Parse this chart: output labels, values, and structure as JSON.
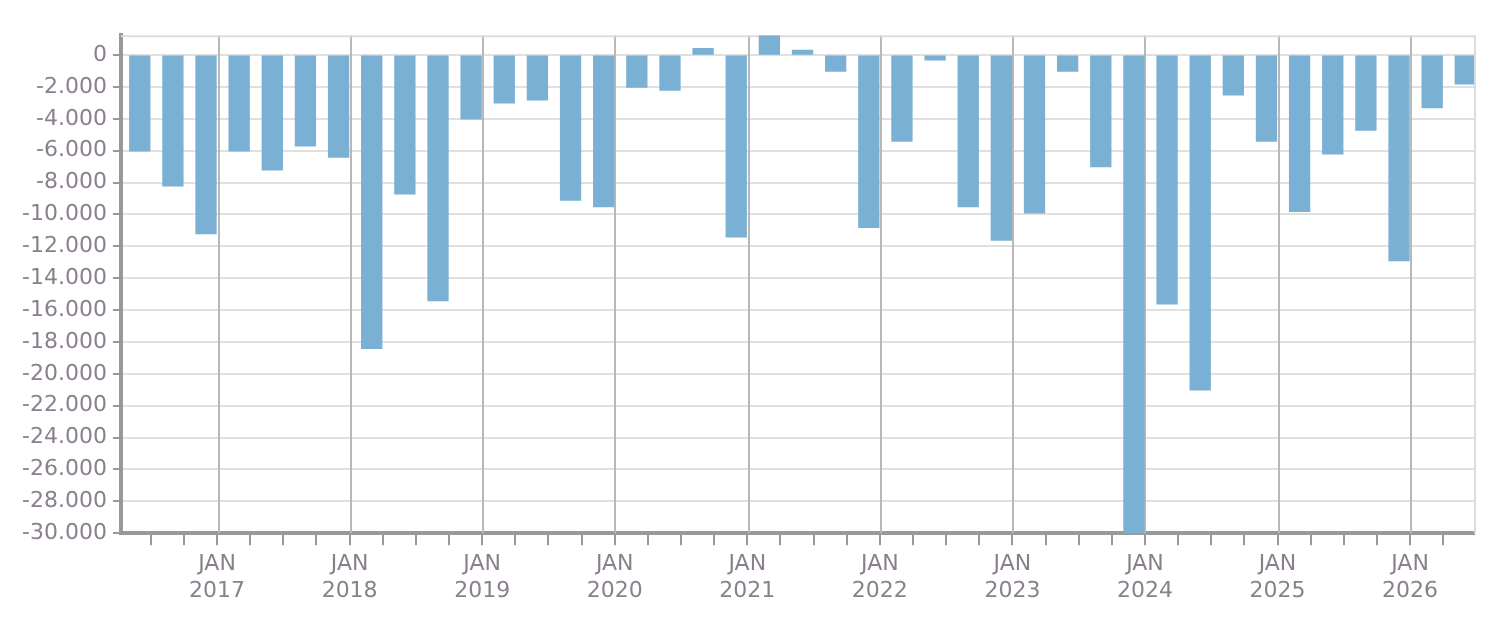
{
  "chart_data": {
    "type": "bar",
    "color": "#7ab0d3",
    "x": [
      "2016-06",
      "2016-09",
      "2016-12",
      "2017-03",
      "2017-06",
      "2017-09",
      "2017-12",
      "2018-03",
      "2018-06",
      "2018-09",
      "2018-12",
      "2019-03",
      "2019-06",
      "2019-09",
      "2019-12",
      "2020-03",
      "2020-06",
      "2020-09",
      "2020-12",
      "2021-03",
      "2021-06",
      "2021-09",
      "2021-12",
      "2022-03",
      "2022-06",
      "2022-09",
      "2022-12",
      "2023-03",
      "2023-06",
      "2023-09",
      "2023-12",
      "2024-03",
      "2024-06",
      "2024-09",
      "2024-12",
      "2025-03",
      "2025-06",
      "2025-09",
      "2025-12",
      "2026-03",
      "2026-06"
    ],
    "values": [
      -6000,
      -8200,
      -11200,
      -6000,
      -7200,
      -5700,
      -6400,
      -18400,
      -8700,
      -15400,
      -4000,
      -3000,
      -2800,
      -9100,
      -9500,
      -2000,
      -2200,
      400,
      -11400,
      1200,
      300,
      -1000,
      -10800,
      -5400,
      -300,
      -9500,
      -11600,
      -9900,
      -1000,
      -7000,
      -30000,
      -15600,
      -21000,
      -2500,
      -5400,
      -9800,
      -6200,
      -4700,
      -12900,
      -3300,
      -1800
    ],
    "xlim": [
      "2016-04-10",
      "2026-06-25"
    ],
    "xticks": [
      {
        "value": "2016-07",
        "label": null
      },
      {
        "value": "2016-10",
        "label": null
      },
      {
        "value": "2017-01",
        "label": "JAN 2017"
      },
      {
        "value": "2017-04",
        "label": null
      },
      {
        "value": "2017-07",
        "label": null
      },
      {
        "value": "2017-10",
        "label": null
      },
      {
        "value": "2018-01",
        "label": "JAN 2018"
      },
      {
        "value": "2018-04",
        "label": null
      },
      {
        "value": "2018-07",
        "label": null
      },
      {
        "value": "2018-10",
        "label": null
      },
      {
        "value": "2019-01",
        "label": "JAN 2019"
      },
      {
        "value": "2019-04",
        "label": null
      },
      {
        "value": "2019-07",
        "label": null
      },
      {
        "value": "2019-10",
        "label": null
      },
      {
        "value": "2020-01",
        "label": "JAN 2020"
      },
      {
        "value": "2020-04",
        "label": null
      },
      {
        "value": "2020-07",
        "label": null
      },
      {
        "value": "2020-10",
        "label": null
      },
      {
        "value": "2021-01",
        "label": "JAN 2021"
      },
      {
        "value": "2021-04",
        "label": null
      },
      {
        "value": "2021-07",
        "label": null
      },
      {
        "value": "2021-10",
        "label": null
      },
      {
        "value": "2022-01",
        "label": "JAN 2022"
      },
      {
        "value": "2022-04",
        "label": null
      },
      {
        "value": "2022-07",
        "label": null
      },
      {
        "value": "2022-10",
        "label": null
      },
      {
        "value": "2023-01",
        "label": "JAN 2023"
      },
      {
        "value": "2023-04",
        "label": null
      },
      {
        "value": "2023-07",
        "label": null
      },
      {
        "value": "2023-10",
        "label": null
      },
      {
        "value": "2024-01",
        "label": "JAN 2024"
      },
      {
        "value": "2024-04",
        "label": null
      },
      {
        "value": "2024-07",
        "label": null
      },
      {
        "value": "2024-10",
        "label": null
      },
      {
        "value": "2025-01",
        "label": "JAN 2025"
      },
      {
        "value": "2025-04",
        "label": null
      },
      {
        "value": "2025-07",
        "label": null
      },
      {
        "value": "2025-10",
        "label": null
      },
      {
        "value": "2026-01",
        "label": "JAN 2026"
      },
      {
        "value": "2026-04",
        "label": null
      }
    ],
    "ylim": [
      -30000,
      1250
    ],
    "yticks": [
      {
        "value": -30000,
        "label": "-30.000"
      },
      {
        "value": -28000,
        "label": "-28.000"
      },
      {
        "value": -26000,
        "label": "-26.000"
      },
      {
        "value": -24000,
        "label": "-24.000"
      },
      {
        "value": -22000,
        "label": "-22.000"
      },
      {
        "value": -20000,
        "label": "-20.000"
      },
      {
        "value": -18000,
        "label": "-18.000"
      },
      {
        "value": -16000,
        "label": "-16.000"
      },
      {
        "value": -14000,
        "label": "-14.000"
      },
      {
        "value": -12000,
        "label": "-12.000"
      },
      {
        "value": -10000,
        "label": "-10.000"
      },
      {
        "value": -8000,
        "label": "-8.000"
      },
      {
        "value": -6000,
        "label": "-6.000"
      },
      {
        "value": -4000,
        "label": "-4.000"
      },
      {
        "value": -2000,
        "label": "-2.000"
      },
      0
    ],
    "grid": true
  }
}
